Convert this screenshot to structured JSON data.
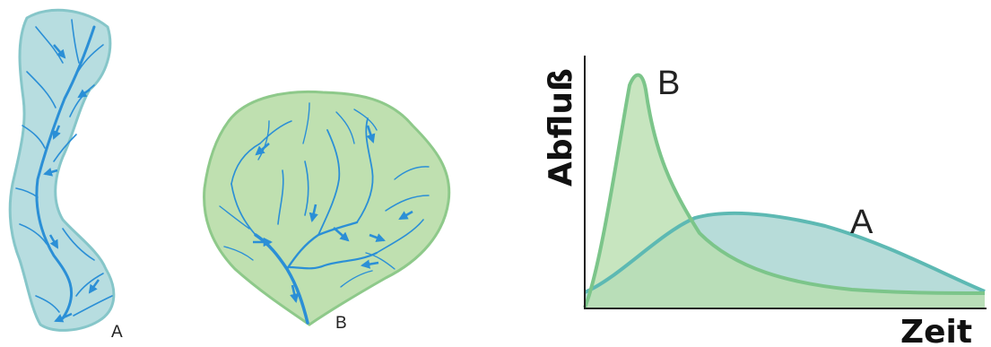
{
  "basins": {
    "a_label": "A",
    "b_label": "B"
  },
  "hydrograph": {
    "y_axis_label": "Abfluß",
    "x_axis_label": "Zeit",
    "curve_b_label": "B",
    "curve_a_label": "A"
  },
  "colors": {
    "basin_a_fill": "#b7dde0",
    "basin_a_stroke": "#86c6c9",
    "basin_b_fill": "#bfe0b0",
    "basin_b_stroke": "#8ec98a",
    "river": "#2b8fd6",
    "curve_a_fill": "#9fd0cc",
    "curve_a_stroke": "#5db9b3",
    "curve_b_fill": "#b9deaf",
    "curve_b_stroke": "#7cc58a",
    "axis": "#222222"
  }
}
